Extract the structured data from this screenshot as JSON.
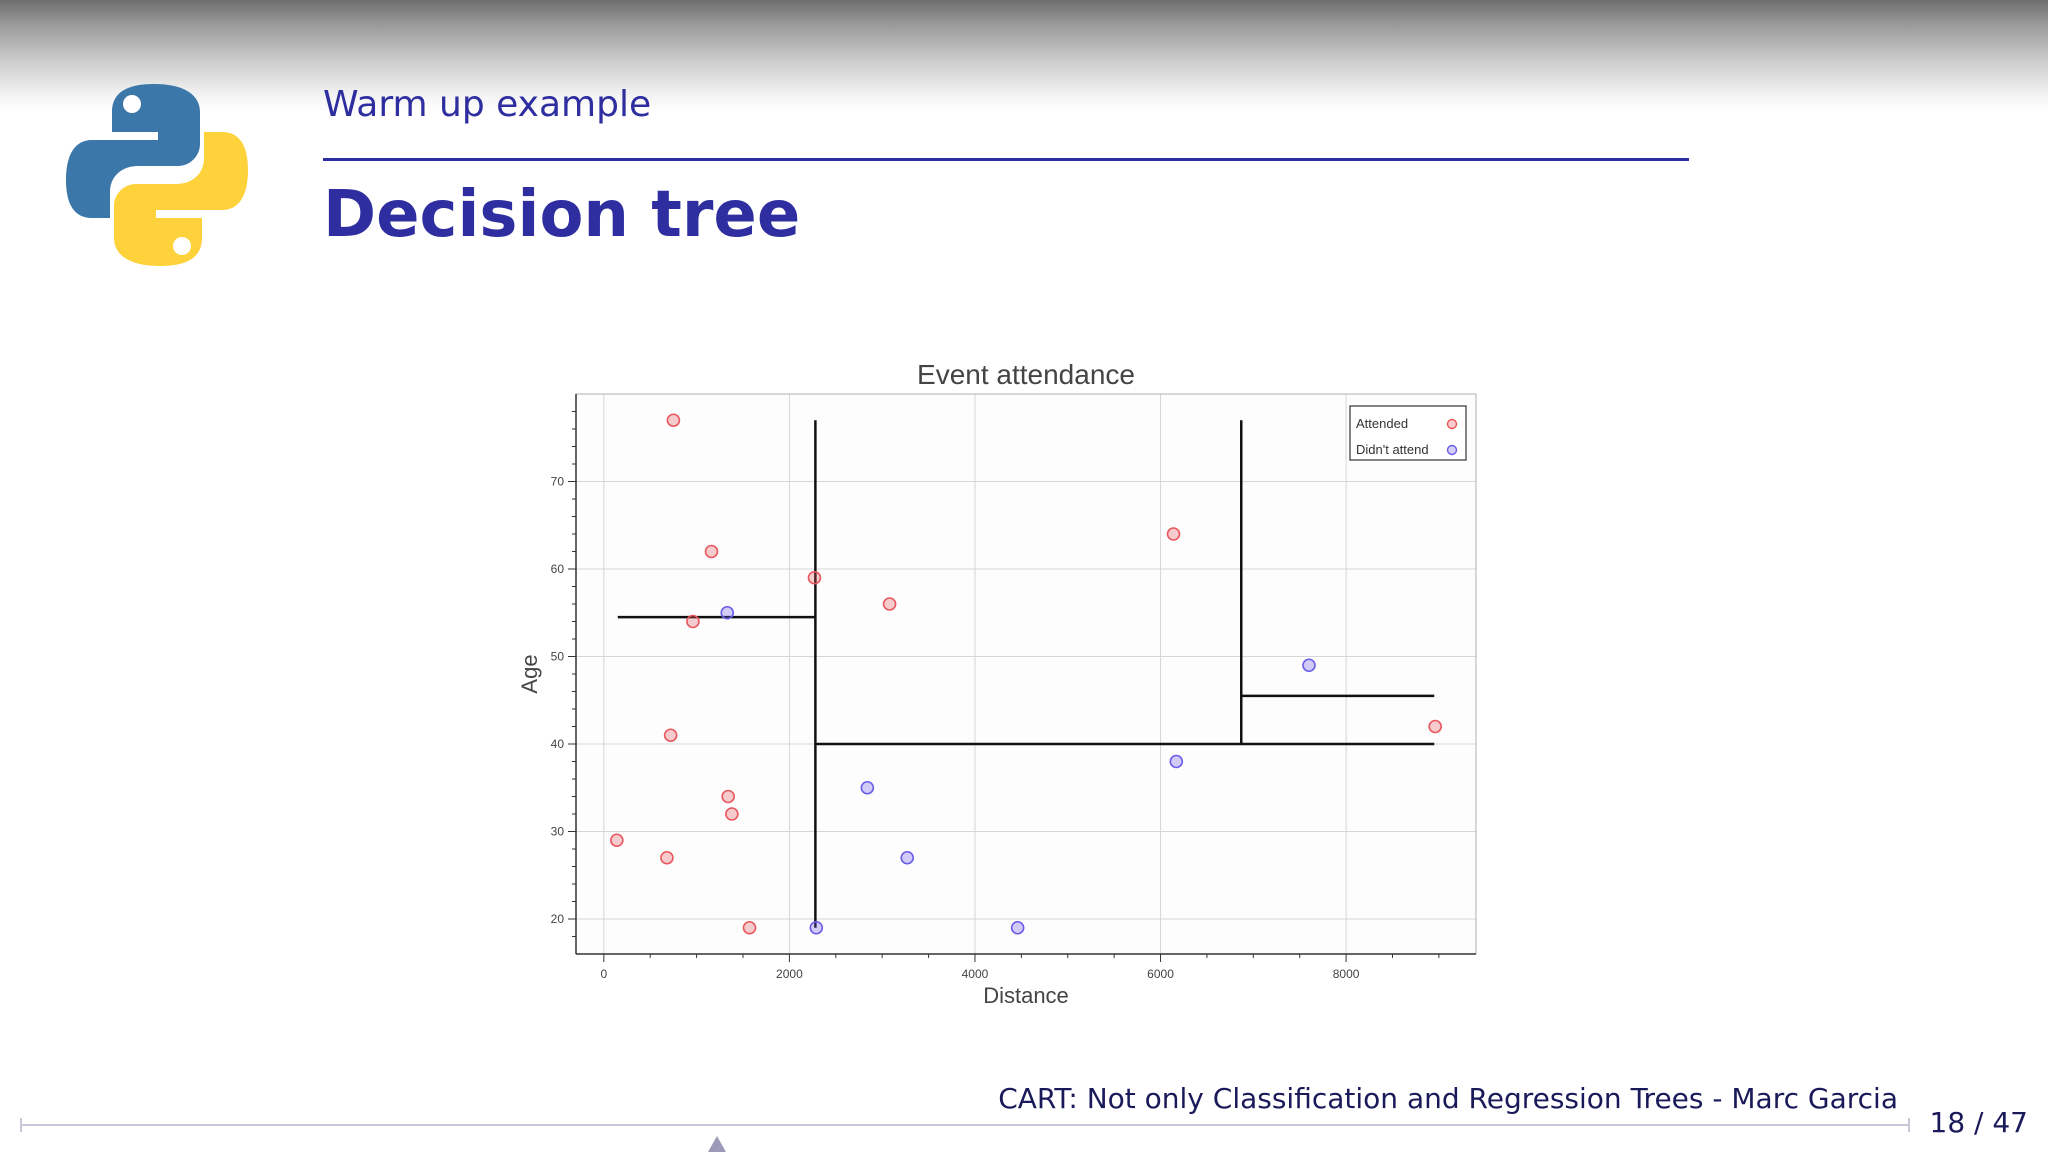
{
  "slide": {
    "section_title": "Warm up example",
    "title": "Decision tree",
    "footer": "CART: Not only Classification and Regression Trees - Marc Garcia",
    "page_number": "18 / 47",
    "logo_icon": "python-logo-icon",
    "accent_color": "#2e2ea0"
  },
  "chart_data": {
    "type": "scatter",
    "title": "Event attendance",
    "xlabel": "Distance",
    "ylabel": "Age",
    "xlim": [
      -300,
      9400
    ],
    "ylim": [
      16,
      80
    ],
    "xticks": [
      0,
      2000,
      4000,
      6000,
      8000
    ],
    "yticks": [
      20,
      30,
      40,
      50,
      60,
      70
    ],
    "grid": true,
    "legend_position": "top-right",
    "series": [
      {
        "name": "Attended",
        "color": "#e8585e",
        "points": [
          [
            750,
            77
          ],
          [
            1160,
            62
          ],
          [
            960,
            54
          ],
          [
            720,
            41
          ],
          [
            1340,
            34
          ],
          [
            1380,
            32
          ],
          [
            140,
            29
          ],
          [
            680,
            27
          ],
          [
            1570,
            19
          ],
          [
            2270,
            59
          ],
          [
            3080,
            56
          ],
          [
            6140,
            64
          ],
          [
            8960,
            42
          ]
        ]
      },
      {
        "name": "Didn't attend",
        "color": "#6a5ee8",
        "points": [
          [
            1330,
            55
          ],
          [
            2290,
            19
          ],
          [
            2840,
            35
          ],
          [
            3270,
            27
          ],
          [
            4460,
            19
          ],
          [
            6170,
            38
          ],
          [
            7600,
            49
          ]
        ]
      }
    ],
    "decision_boundaries": [
      {
        "x1": 2280,
        "y1": 77,
        "x2": 2280,
        "y2": 19
      },
      {
        "x1": 150,
        "y1": 54.5,
        "x2": 2280,
        "y2": 54.5
      },
      {
        "x1": 2280,
        "y1": 40,
        "x2": 8950,
        "y2": 40
      },
      {
        "x1": 6870,
        "y1": 77,
        "x2": 6870,
        "y2": 40
      },
      {
        "x1": 6870,
        "y1": 45.5,
        "x2": 8950,
        "y2": 45.5
      }
    ]
  }
}
